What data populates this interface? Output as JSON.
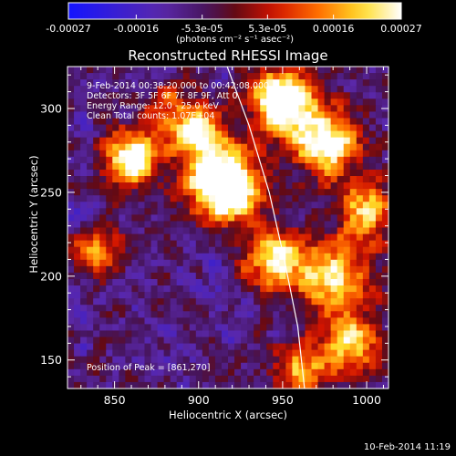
{
  "window": {
    "timestamp": "10-Feb-2014 11:19"
  },
  "colorbar": {
    "ticks": [
      "-0.00027",
      "-0.00016",
      "-5.3e-05",
      "5.3e-05",
      "0.00016",
      "0.00027"
    ],
    "tick_values": [
      -0.00027,
      -0.00016,
      -5.3e-05,
      5.3e-05,
      0.00016,
      0.00027
    ],
    "range": [
      -0.00027,
      0.00027
    ],
    "units": "(photons cm⁻² s⁻¹ asec⁻²)",
    "colors": [
      "#1010ff",
      "#8020d0",
      "#ff3000",
      "#ff9000",
      "#ffffff"
    ]
  },
  "chart_data": {
    "type": "heatmap",
    "title": "Reconstructed RHESSI Image",
    "xlabel": "Heliocentric X (arcsec)",
    "ylabel": "Heliocentric Y (arcsec)",
    "xlim": [
      822,
      1013
    ],
    "ylim": [
      133,
      325
    ],
    "xticks": [
      850,
      900,
      950,
      1000
    ],
    "yticks": [
      150,
      200,
      250,
      300
    ],
    "annotations": [
      "9-Feb-2014 00:38:20.000 to 00:42:08.000",
      "Detectors: 3F 5F 6F 7F 8F 9F, Att 0",
      "Energy Range: 12.0 - 25.0 keV",
      "Clean     Total counts: 1.07E+04"
    ],
    "peak_label": "Position of Peak = [861,270]",
    "peak": [
      861,
      270
    ],
    "limb_curve": [
      [
        917,
        325
      ],
      [
        930,
        290
      ],
      [
        942,
        250
      ],
      [
        951,
        210
      ],
      [
        959,
        170
      ],
      [
        963,
        133
      ]
    ],
    "emission_sources": [
      {
        "x": 860,
        "y": 270,
        "strength": 0.75,
        "width": 16
      },
      {
        "x": 915,
        "y": 255,
        "strength": 0.95,
        "width": 22
      },
      {
        "x": 950,
        "y": 305,
        "strength": 0.85,
        "width": 18
      },
      {
        "x": 975,
        "y": 280,
        "strength": 0.7,
        "width": 20
      },
      {
        "x": 945,
        "y": 210,
        "strength": 0.6,
        "width": 18
      },
      {
        "x": 980,
        "y": 200,
        "strength": 0.55,
        "width": 22
      },
      {
        "x": 990,
        "y": 160,
        "strength": 0.55,
        "width": 18
      },
      {
        "x": 900,
        "y": 285,
        "strength": 0.6,
        "width": 15
      },
      {
        "x": 840,
        "y": 215,
        "strength": 0.45,
        "width": 14
      },
      {
        "x": 960,
        "y": 145,
        "strength": 0.5,
        "width": 15
      },
      {
        "x": 1000,
        "y": 240,
        "strength": 0.5,
        "width": 18
      },
      {
        "x": 880,
        "y": 300,
        "strength": 0.4,
        "width": 15
      }
    ]
  }
}
